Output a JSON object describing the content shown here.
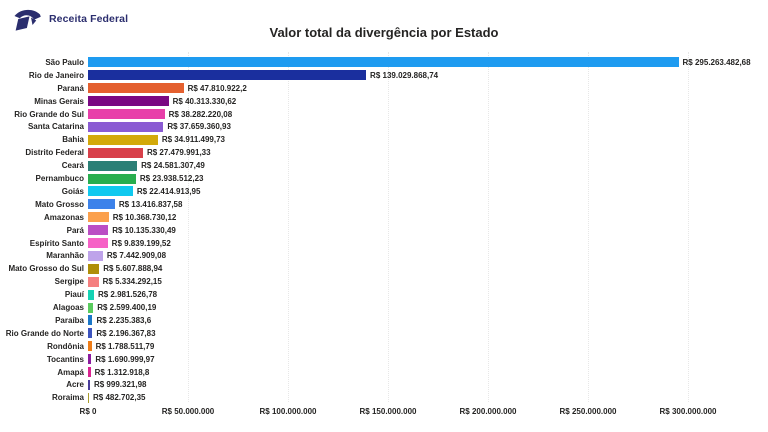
{
  "header": {
    "brand": "Receita Federal",
    "brand_color": "#2b2e6e"
  },
  "chart_data": {
    "type": "bar",
    "orientation": "horizontal",
    "title": "Valor total da divergência por Estado",
    "xlabel": "",
    "ylabel": "",
    "xlim": [
      0,
      300000000
    ],
    "grid": "dotted-vertical",
    "legend": "none",
    "text_color": "#252423",
    "grid_color": "#e7e7e7",
    "x_ticks": [
      "R$ 0",
      "R$ 50.000.000",
      "R$ 100.000.000",
      "R$ 150.000.000",
      "R$ 200.000.000",
      "R$ 250.000.000",
      "R$ 300.000.000"
    ],
    "x_tick_values": [
      0,
      50000000,
      100000000,
      150000000,
      200000000,
      250000000,
      300000000
    ],
    "states": [
      {
        "name": "São Paulo",
        "value": 295263482.68,
        "value_label": "R$ 295.263.482,68",
        "color": "#1e9bf0"
      },
      {
        "name": "Rio de Janeiro",
        "value": 139029868.74,
        "value_label": "R$ 139.029.868,74",
        "color": "#1a2f9e"
      },
      {
        "name": "Paraná",
        "value": 47810922.2,
        "value_label": "R$ 47.810.922,2",
        "color": "#e4602f"
      },
      {
        "name": "Minas Gerais",
        "value": 40313330.62,
        "value_label": "R$ 40.313.330,62",
        "color": "#7a0883"
      },
      {
        "name": "Rio Grande do Sul",
        "value": 38282220.08,
        "value_label": "R$ 38.282.220,08",
        "color": "#e83fa9"
      },
      {
        "name": "Santa Catarina",
        "value": 37659360.93,
        "value_label": "R$ 37.659.360,93",
        "color": "#8a5bd3"
      },
      {
        "name": "Bahia",
        "value": 34911499.73,
        "value_label": "R$ 34.911.499,73",
        "color": "#d3a90a"
      },
      {
        "name": "Distrito Federal",
        "value": 27479991.33,
        "value_label": "R$ 27.479.991,33",
        "color": "#d8404a"
      },
      {
        "name": "Ceará",
        "value": 24581307.49,
        "value_label": "R$ 24.581.307,49",
        "color": "#2b7f76"
      },
      {
        "name": "Pernambuco",
        "value": 23938512.23,
        "value_label": "R$ 23.938.512,23",
        "color": "#28ae4e"
      },
      {
        "name": "Goiás",
        "value": 22414913.95,
        "value_label": "R$ 22.414.913,95",
        "color": "#10c9ef"
      },
      {
        "name": "Mato Grosso",
        "value": 13416837.58,
        "value_label": "R$ 13.416.837,58",
        "color": "#3c82ea"
      },
      {
        "name": "Amazonas",
        "value": 10368730.12,
        "value_label": "R$ 10.368.730,12",
        "color": "#fba04c"
      },
      {
        "name": "Pará",
        "value": 10135330.49,
        "value_label": "R$ 10.135.330,49",
        "color": "#bb4ec4"
      },
      {
        "name": "Espírito Santo",
        "value": 9839199.52,
        "value_label": "R$ 9.839.199,52",
        "color": "#f661c6"
      },
      {
        "name": "Maranhão",
        "value": 7442909.08,
        "value_label": "R$ 7.442.909,08",
        "color": "#bea3ea"
      },
      {
        "name": "Mato Grosso do Sul",
        "value": 5607888.94,
        "value_label": "R$ 5.607.888,94",
        "color": "#af8e08"
      },
      {
        "name": "Sergipe",
        "value": 5334292.15,
        "value_label": "R$ 5.334.292,15",
        "color": "#f57f7f"
      },
      {
        "name": "Piauí",
        "value": 2981526.78,
        "value_label": "R$ 2.981.526,78",
        "color": "#15d3b5"
      },
      {
        "name": "Alagoas",
        "value": 2599400.19,
        "value_label": "R$ 2.599.400,19",
        "color": "#5acc5e"
      },
      {
        "name": "Paraíba",
        "value": 2235383.6,
        "value_label": "R$ 2.235.383,6",
        "color": "#1976c8"
      },
      {
        "name": "Rio Grande do Norte",
        "value": 2196367.83,
        "value_label": "R$ 2.196.367,83",
        "color": "#3c53be"
      },
      {
        "name": "Rondônia",
        "value": 1788511.79,
        "value_label": "R$ 1.788.511,79",
        "color": "#ef7d18"
      },
      {
        "name": "Tocantins",
        "value": 1690999.97,
        "value_label": "R$ 1.690.999,97",
        "color": "#8b1b9f"
      },
      {
        "name": "Amapá",
        "value": 1312918.8,
        "value_label": "R$ 1.312.918,8",
        "color": "#d92390"
      },
      {
        "name": "Acre",
        "value": 999321.98,
        "value_label": "R$ 999.321,98",
        "color": "#483b9a"
      },
      {
        "name": "Roraima",
        "value": 482702.35,
        "value_label": "R$ 482.702,35",
        "color": "#aa9c2a"
      }
    ]
  }
}
